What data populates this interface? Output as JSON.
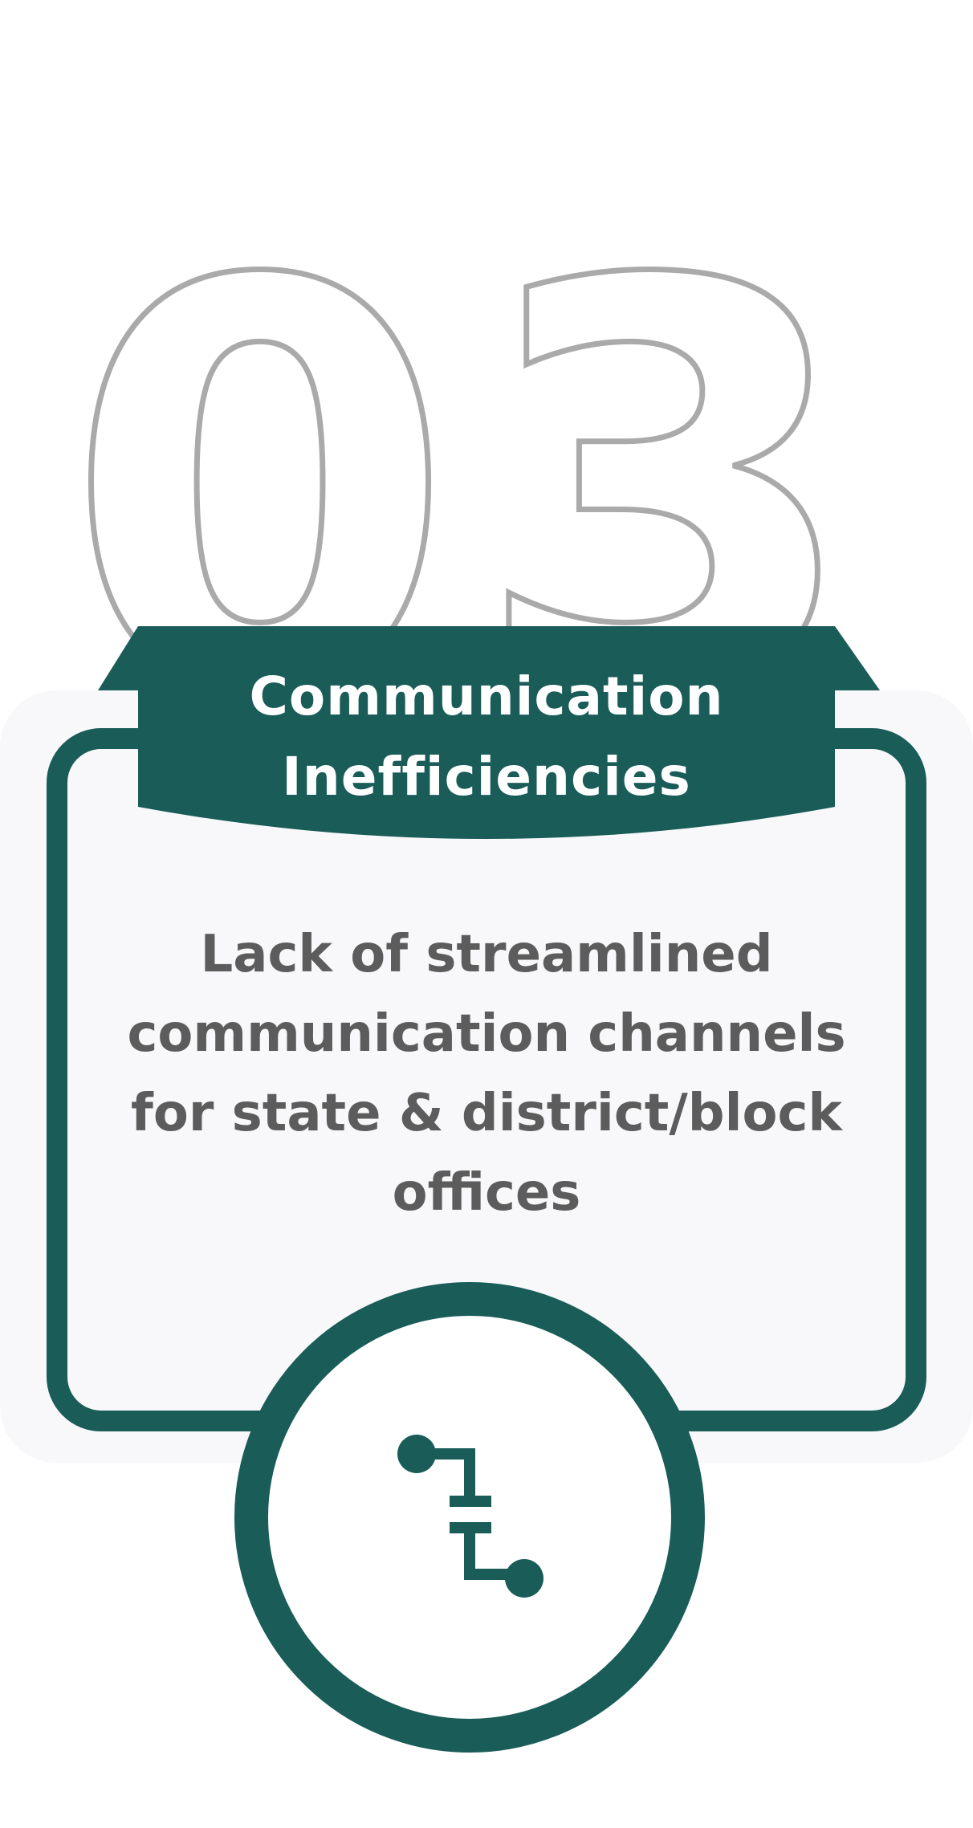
{
  "step_number": "03",
  "title_line1": "Communication",
  "title_line2": "Inefficiencies",
  "description": "Lack of streamlined communication channels for state & district/block offices",
  "icon": "disconnected-link-icon",
  "colors": {
    "primary": "#1a5c58",
    "card_background": "#f8f8fa",
    "number_outline": "#aaaaaa",
    "text": "#5c5c5c"
  }
}
